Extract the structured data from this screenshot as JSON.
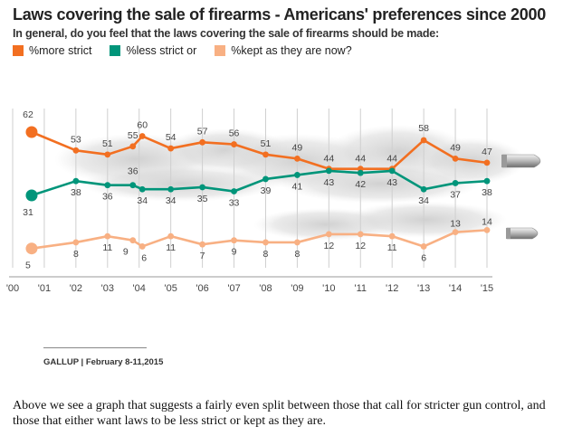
{
  "header": {
    "title": "Laws covering the sale of firearms - Americans' preferences since 2000",
    "subtitle": "In general, do you feel that the laws covering the sale of firearms should be made:"
  },
  "legend": [
    {
      "label": "%more strict",
      "color": "#f26f21"
    },
    {
      "label": "%less strict or",
      "color": "#00957a"
    },
    {
      "label": "%kept as they are now?",
      "color": "#f8b083"
    }
  ],
  "chart_data": {
    "type": "line",
    "title": "Laws covering the sale of firearms - Americans' preferences since 2000",
    "subtitle": "In general, do you feel that the laws covering the sale of firearms should be made:",
    "x_tick_labels": [
      "'00",
      "'01",
      "'02",
      "'03",
      "'04",
      "'05",
      "'06",
      "'07",
      "'08",
      "'09",
      "'10",
      "'11",
      "'12",
      "'13",
      "'14",
      "'15"
    ],
    "x_range": [
      2000,
      2015
    ],
    "grid": "vertical",
    "legend_position": "top-left",
    "series": [
      {
        "name": "%more strict",
        "color": "#f26f21",
        "points": [
          [
            2000.6,
            62
          ],
          [
            2002,
            53
          ],
          [
            2003,
            51
          ],
          [
            2003.8,
            55
          ],
          [
            2004.1,
            60
          ],
          [
            2005,
            54
          ],
          [
            2006,
            57
          ],
          [
            2007,
            56
          ],
          [
            2008,
            51
          ],
          [
            2009,
            49
          ],
          [
            2010,
            44
          ],
          [
            2011,
            44
          ],
          [
            2012,
            44
          ],
          [
            2013,
            58
          ],
          [
            2014,
            49
          ],
          [
            2015,
            47
          ]
        ]
      },
      {
        "name": "%less strict or",
        "color": "#00957a",
        "points": [
          [
            2000.6,
            31
          ],
          [
            2002,
            38
          ],
          [
            2003,
            36
          ],
          [
            2003.8,
            36
          ],
          [
            2004.1,
            34
          ],
          [
            2005,
            34
          ],
          [
            2006,
            35
          ],
          [
            2007,
            33
          ],
          [
            2008,
            39
          ],
          [
            2009,
            41
          ],
          [
            2010,
            43
          ],
          [
            2011,
            42
          ],
          [
            2012,
            43
          ],
          [
            2013,
            34
          ],
          [
            2014,
            37
          ],
          [
            2015,
            38
          ]
        ]
      },
      {
        "name": "%kept as they are now?",
        "color": "#f8b083",
        "points": [
          [
            2000.6,
            5
          ],
          [
            2002,
            8
          ],
          [
            2003,
            11
          ],
          [
            2003.8,
            9
          ],
          [
            2004.1,
            6
          ],
          [
            2005,
            11
          ],
          [
            2006,
            7
          ],
          [
            2007,
            9
          ],
          [
            2008,
            8
          ],
          [
            2009,
            8
          ],
          [
            2010,
            12
          ],
          [
            2011,
            12
          ],
          [
            2012,
            11
          ],
          [
            2013,
            6
          ],
          [
            2014,
            13
          ],
          [
            2015,
            14
          ]
        ]
      }
    ]
  },
  "source": "GALLUP | February 8-11,2015",
  "caption": "Above we see a graph that suggests a fairly even split between those that call for stricter gun control, and those that either want laws to be less strict or kept as they are."
}
